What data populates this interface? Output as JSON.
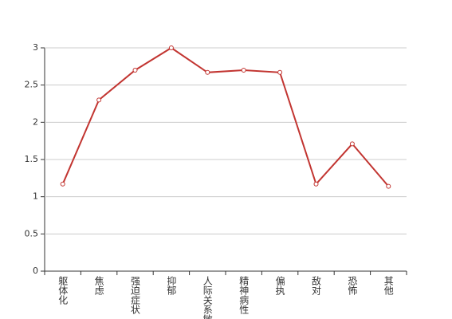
{
  "chart_data": {
    "type": "line",
    "categories": [
      "躯体化",
      "焦虑",
      "强迫症状",
      "抑郁",
      "人际关系敏感",
      "精神病性",
      "偏执",
      "敌对",
      "恐怖",
      "其他"
    ],
    "values": [
      1.17,
      2.3,
      2.7,
      3.0,
      2.67,
      2.7,
      2.67,
      1.17,
      1.71,
      1.14
    ],
    "color": "#c23531",
    "ylim": [
      0,
      3
    ],
    "yticks": [
      0,
      0.5,
      1,
      1.5,
      2,
      2.5,
      3
    ],
    "grid": true
  }
}
